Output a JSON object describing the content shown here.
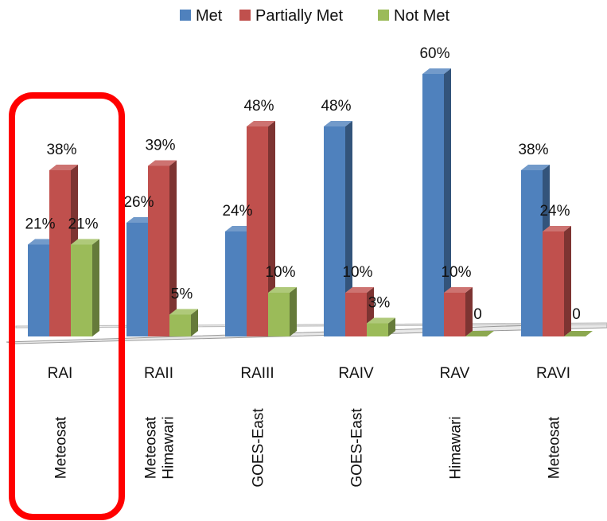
{
  "chart_data": {
    "type": "bar",
    "title": "",
    "xlabel": "",
    "ylabel": "",
    "ylim": [
      0,
      60
    ],
    "grid": false,
    "legend_position": "top",
    "categories": [
      "RAI",
      "RAII",
      "RAIII",
      "RAIV",
      "RAV",
      "RAVI"
    ],
    "satellites": [
      [
        "Meteosat"
      ],
      [
        "Meteosat",
        "Himawari"
      ],
      [
        "GOES-East"
      ],
      [
        "GOES-East"
      ],
      [
        "Himawari"
      ],
      [
        "Meteosat"
      ]
    ],
    "series": [
      {
        "name": "Met",
        "color": "#4f81bd",
        "values": [
          21,
          26,
          24,
          48,
          60,
          38
        ],
        "labels": [
          "21%",
          "26%",
          "24%",
          "48%",
          "60%",
          "38%"
        ]
      },
      {
        "name": "Partially Met",
        "color": "#c0504d",
        "values": [
          38,
          39,
          48,
          10,
          10,
          24
        ],
        "labels": [
          "38%",
          "39%",
          "48%",
          "10%",
          "10%",
          "24%"
        ]
      },
      {
        "name": "Not Met",
        "color": "#9bbb59",
        "values": [
          21,
          5,
          10,
          3,
          0,
          0
        ],
        "labels": [
          "21%",
          "5%",
          "10%",
          "3%",
          "0",
          "0"
        ]
      }
    ],
    "highlight": {
      "category": "RAI",
      "color": "#ff0000"
    }
  }
}
